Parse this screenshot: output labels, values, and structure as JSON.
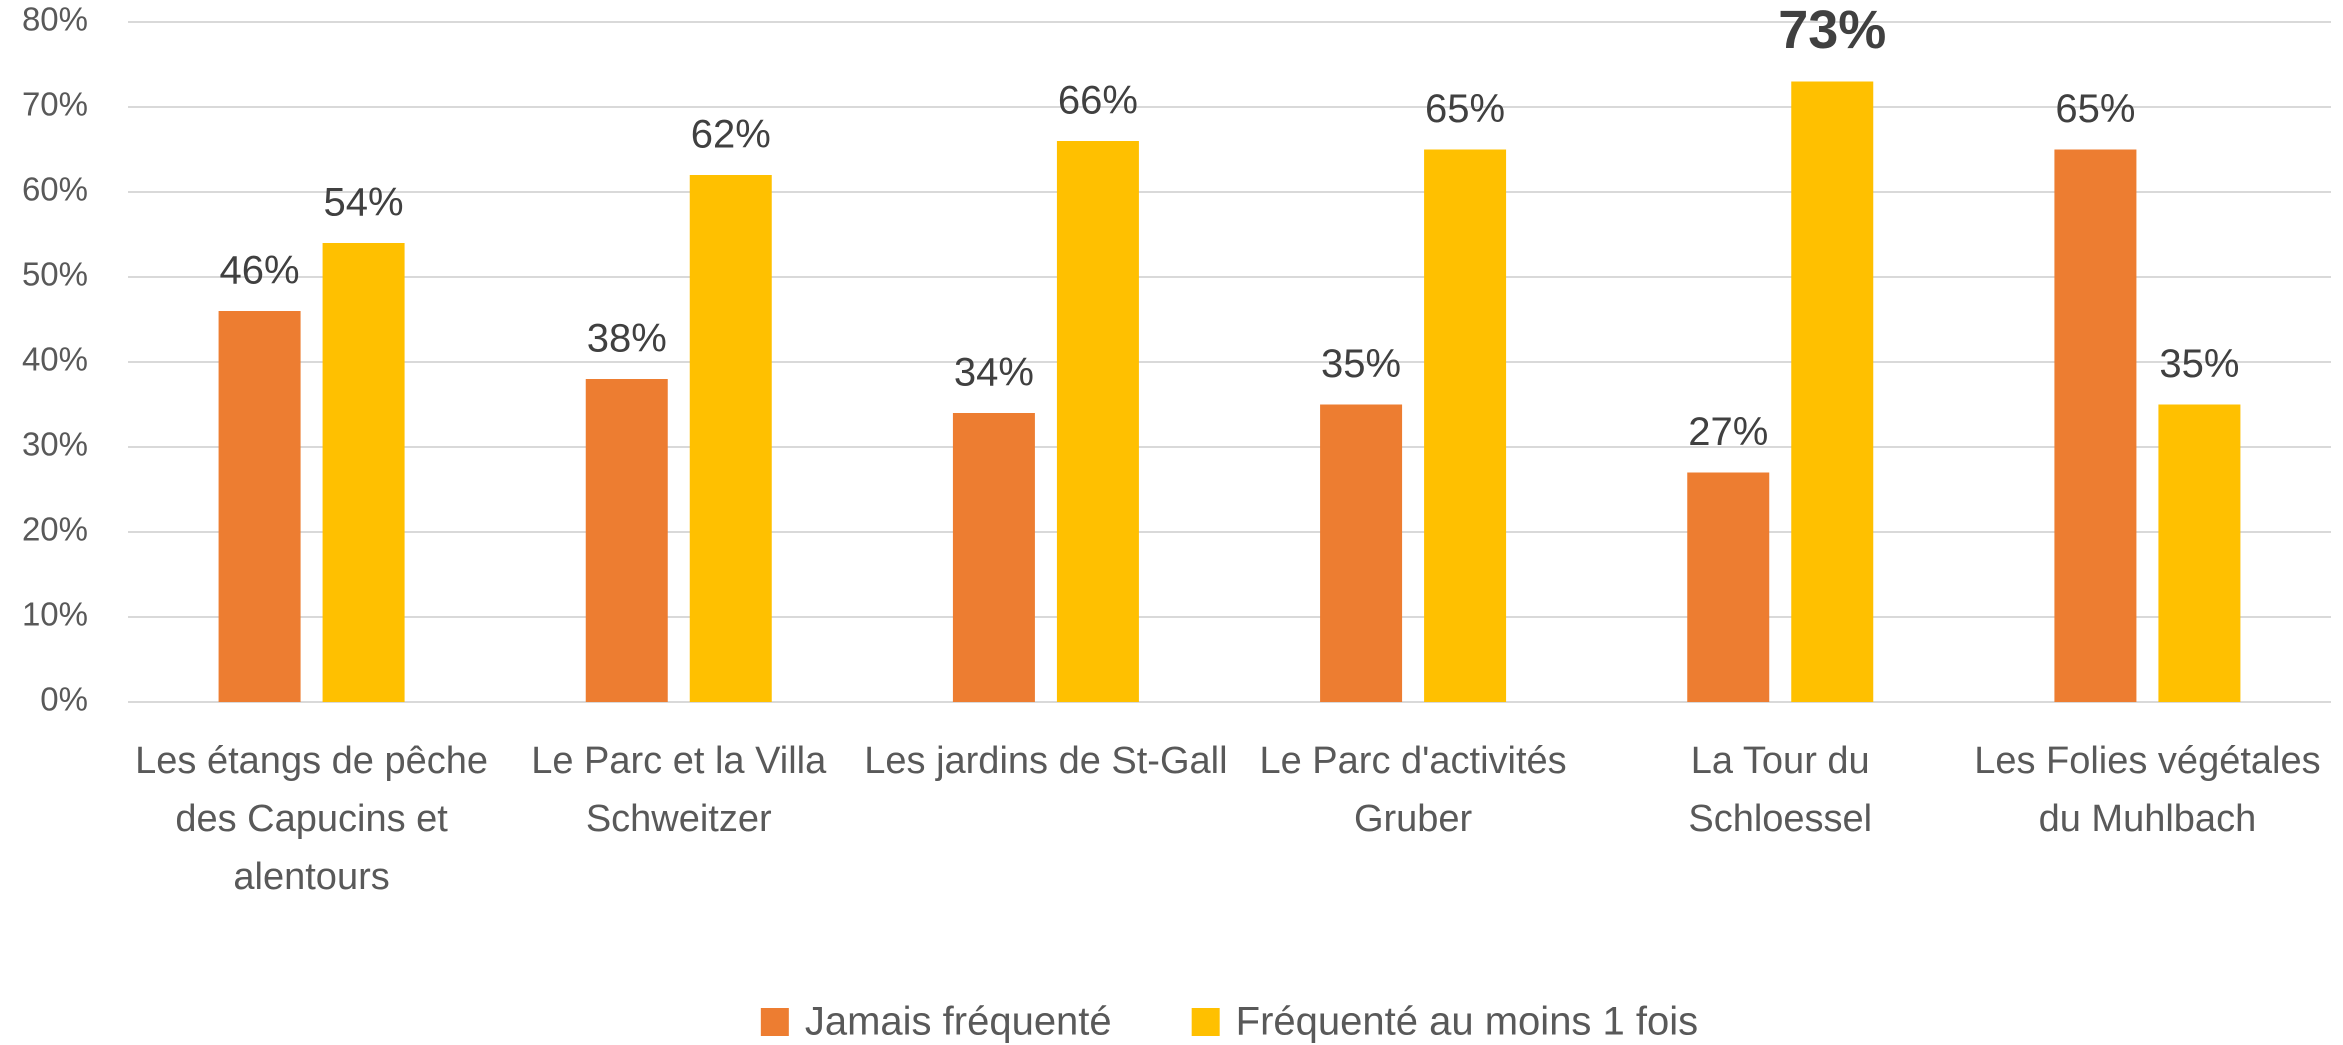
{
  "chart_data": {
    "type": "bar",
    "categories": [
      "Les étangs de pêche des Capucins et alentours",
      "Le Parc et la Villa Schweitzer",
      "Les jardins de St-Gall",
      "Le Parc d'activités Gruber",
      "La Tour du Schloessel",
      "Les Folies végétales du Muhlbach"
    ],
    "series": [
      {
        "name": "Jamais fréquenté",
        "color": "#ED7D31",
        "values": [
          46,
          38,
          34,
          35,
          27,
          65
        ],
        "value_labels": [
          "46%",
          "38%",
          "34%",
          "35%",
          "27%",
          "65%"
        ]
      },
      {
        "name": "Fréquenté au moins 1 fois",
        "color": "#FFC000",
        "values": [
          54,
          62,
          66,
          65,
          73,
          35
        ],
        "value_labels": [
          "54%",
          "62%",
          "66%",
          "65%",
          "73%",
          "35%"
        ]
      }
    ],
    "highlight": {
      "series": 1,
      "index": 4
    },
    "ylim": [
      0,
      80
    ],
    "yticks": [
      {
        "value": 0,
        "label": "0%"
      },
      {
        "value": 10,
        "label": "10%"
      },
      {
        "value": 20,
        "label": "20%"
      },
      {
        "value": 30,
        "label": "30%"
      },
      {
        "value": 40,
        "label": "40%"
      },
      {
        "value": 50,
        "label": "50%"
      },
      {
        "value": 60,
        "label": "60%"
      },
      {
        "value": 70,
        "label": "70%"
      },
      {
        "value": 80,
        "label": "80%"
      }
    ],
    "grid": true,
    "legend": "bottom"
  }
}
